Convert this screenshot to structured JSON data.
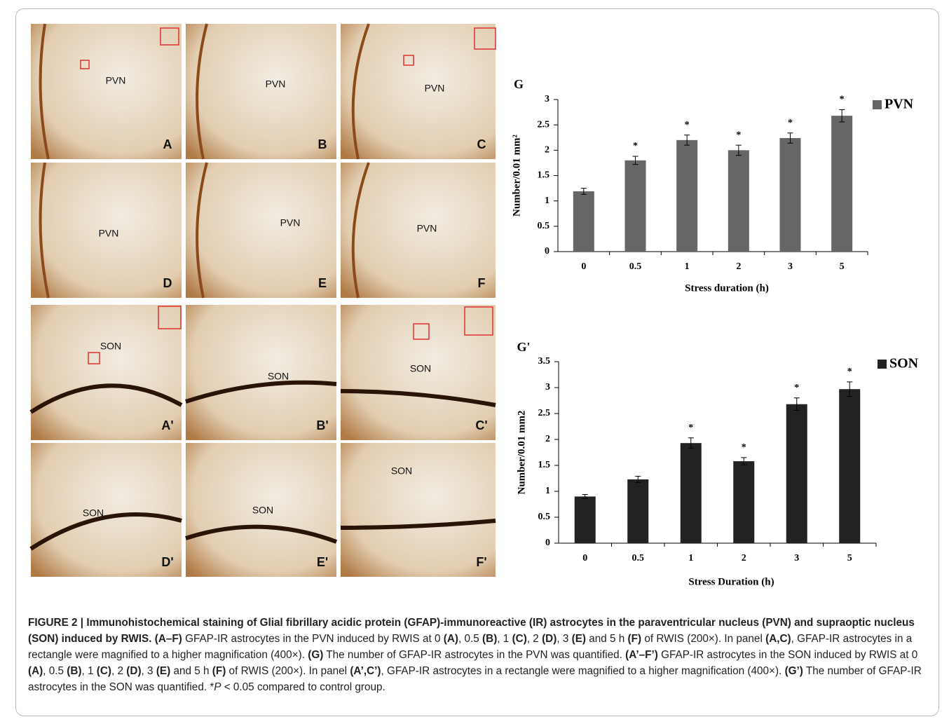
{
  "panels": [
    {
      "region": "PVN",
      "label": "A"
    },
    {
      "region": "PVN",
      "label": "B"
    },
    {
      "region": "PVN",
      "label": "C"
    },
    {
      "region": "PVN",
      "label": "D"
    },
    {
      "region": "PVN",
      "label": "E"
    },
    {
      "region": "PVN",
      "label": "F"
    },
    {
      "region": "SON",
      "label": "A'"
    },
    {
      "region": "SON",
      "label": "B'"
    },
    {
      "region": "SON",
      "label": "C'"
    },
    {
      "region": "SON",
      "label": "D'"
    },
    {
      "region": "SON",
      "label": "E'"
    },
    {
      "region": "SON",
      "label": "F'"
    }
  ],
  "chart_data": [
    {
      "type": "bar",
      "title": "G",
      "legend": "PVN",
      "y_label": "Number/0.01 mm²",
      "x_label": "Stress duration (h)",
      "categories": [
        "0",
        "0.5",
        "1",
        "2",
        "3",
        "5"
      ],
      "values": [
        1.19,
        1.8,
        2.2,
        2.0,
        2.24,
        2.68
      ],
      "errors": [
        0.06,
        0.08,
        0.1,
        0.1,
        0.1,
        0.12
      ],
      "significance": [
        null,
        "*",
        "*",
        "*",
        "*",
        "*"
      ],
      "color": "#666666",
      "ylim": [
        0,
        3
      ],
      "yticks": [
        0,
        0.5,
        1,
        1.5,
        2,
        2.5,
        3
      ]
    },
    {
      "type": "bar",
      "title": "G'",
      "legend": "SON",
      "y_label": "Number/0.01 mm2",
      "x_label": "Stress Duration (h)",
      "categories": [
        "0",
        "0.5",
        "1",
        "2",
        "3",
        "5"
      ],
      "values": [
        0.9,
        1.23,
        1.93,
        1.58,
        2.68,
        2.97
      ],
      "errors": [
        0.04,
        0.06,
        0.1,
        0.07,
        0.12,
        0.14
      ],
      "significance": [
        null,
        null,
        "*",
        "*",
        "*",
        "*"
      ],
      "color": "#222222",
      "ylim": [
        0,
        3.5
      ],
      "yticks": [
        0,
        0.5,
        1,
        1.5,
        2,
        2.5,
        3,
        3.5
      ]
    }
  ],
  "caption": [
    {
      "text": "FIGURE 2 | Immunohistochemical staining of Glial fibrillary acidic protein (GFAP)-immunoreactive (IR) astrocytes in the paraventricular nucleus (PVN) and supraoptic nucleus (SON) induced by RWIS. (A–F)",
      "style": "bold"
    },
    {
      "text": " GFAP-IR astrocytes in the PVN induced by RWIS at 0 "
    },
    {
      "text": "(A)",
      "style": "bold"
    },
    {
      "text": ", 0.5 "
    },
    {
      "text": "(B)",
      "style": "bold"
    },
    {
      "text": ", 1 "
    },
    {
      "text": "(C)",
      "style": "bold"
    },
    {
      "text": ", 2 "
    },
    {
      "text": "(D)",
      "style": "bold"
    },
    {
      "text": ", 3 "
    },
    {
      "text": "(E)",
      "style": "bold"
    },
    {
      "text": " and 5 h "
    },
    {
      "text": "(F)",
      "style": "bold"
    },
    {
      "text": " of RWIS (200×). In panel "
    },
    {
      "text": "(A,C)",
      "style": "bold"
    },
    {
      "text": ", GFAP-IR astrocytes in a rectangle were magnified to a higher magnification (400×). "
    },
    {
      "text": "(G)",
      "style": "bold"
    },
    {
      "text": " The number of GFAP-IR astrocytes in the PVN was quantified. "
    },
    {
      "text": "(A’–F’)",
      "style": "bold"
    },
    {
      "text": " GFAP-IR astrocytes in the SON induced by RWIS at 0 "
    },
    {
      "text": "(A)",
      "style": "bold"
    },
    {
      "text": ", 0.5 "
    },
    {
      "text": "(B)",
      "style": "bold"
    },
    {
      "text": ", 1 "
    },
    {
      "text": "(C)",
      "style": "bold"
    },
    {
      "text": ", 2 "
    },
    {
      "text": "(D)",
      "style": "bold"
    },
    {
      "text": ", 3 "
    },
    {
      "text": "(E)",
      "style": "bold"
    },
    {
      "text": " and 5 h "
    },
    {
      "text": "(F)",
      "style": "bold"
    },
    {
      "text": " of RWIS (200×). In panel "
    },
    {
      "text": "(A’,C’)",
      "style": "bold"
    },
    {
      "text": ", GFAP-IR astrocytes in a rectangle were magnified to a higher magnification (400×). "
    },
    {
      "text": "(G’)",
      "style": "bold"
    },
    {
      "text": " The number of GFAP-IR astrocytes in the SON was quantified. *"
    },
    {
      "text": "P",
      "style": "italic"
    },
    {
      "text": " < 0.05 compared to control group."
    }
  ]
}
